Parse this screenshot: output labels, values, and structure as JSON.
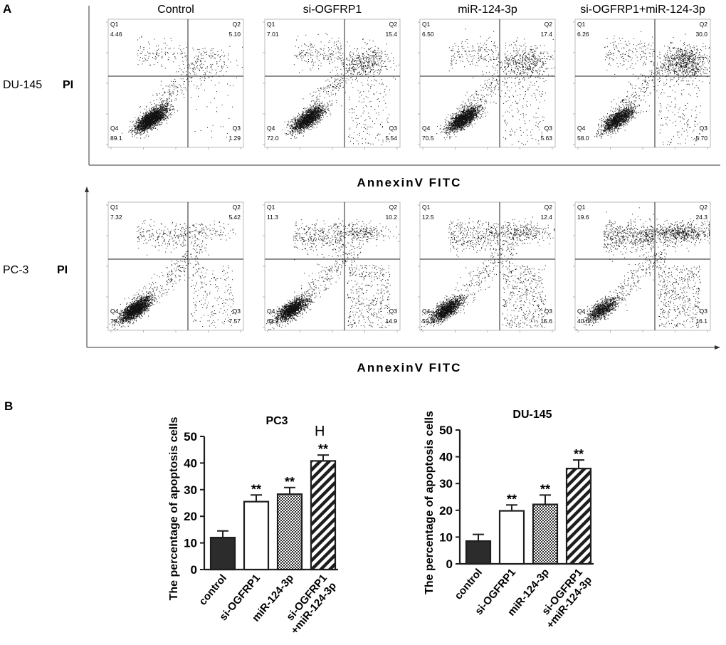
{
  "colors": {
    "ink": "#1e1e1e",
    "bar_fill": "#2c2c2c",
    "panel_border": "#aaaaaa"
  },
  "panel_a": {
    "label": "A",
    "columns": [
      "Control",
      "si-OGFRP1",
      "miR-124-3p",
      "si-OGFRP1+miR-124-3p"
    ],
    "x_axis_label": "AnnexinV FITC",
    "y_axis_label": "PI",
    "rows": [
      {
        "cell_line": "DU-145",
        "plots": [
          {
            "q1": "4.46",
            "q2": "5.10",
            "q3": "1.29",
            "q4": "89.1"
          },
          {
            "q1": "7.01",
            "q2": "15.4",
            "q3": "5.54",
            "q4": "72.0"
          },
          {
            "q1": "6.50",
            "q2": "17.4",
            "q3": "5.63",
            "q4": "70.5"
          },
          {
            "q1": "6.26",
            "q2": "30.0",
            "q3": "5.70",
            "q4": "58.0"
          }
        ]
      },
      {
        "cell_line": "PC-3",
        "plots": [
          {
            "q1": "7.32",
            "q2": "5.42",
            "q3": "7.57",
            "q4": "79.7"
          },
          {
            "q1": "11.3",
            "q2": "10.2",
            "q3": "14.9",
            "q4": "63.7"
          },
          {
            "q1": "12.5",
            "q2": "12.4",
            "q3": "15.6",
            "q4": "59.5"
          },
          {
            "q1": "19.6",
            "q2": "24.3",
            "q3": "16.1",
            "q4": "40.0"
          }
        ]
      }
    ],
    "quadrant_names": [
      "Q1",
      "Q2",
      "Q3",
      "Q4"
    ]
  },
  "panel_b": {
    "label": "B",
    "stray_mark": "H"
  },
  "chart_data": [
    {
      "type": "bar",
      "title": "PC3",
      "xlabel": "",
      "ylabel": "The percentage of apoptosis cells",
      "categories": [
        "control",
        "si-OGFRP1",
        "miR-124-3p",
        "si-OGFRP1 +miR-124-3p"
      ],
      "values": [
        12,
        25.5,
        28.3,
        40.8
      ],
      "errors": [
        2.5,
        2.5,
        2.5,
        2.2
      ],
      "significance": [
        "",
        "**",
        "**",
        "**"
      ],
      "ylim": [
        0,
        50
      ],
      "yticks": [
        0,
        10,
        20,
        30,
        40,
        50
      ],
      "bar_patterns": [
        "solid",
        "open",
        "checker",
        "hatch"
      ]
    },
    {
      "type": "bar",
      "title": "DU-145",
      "xlabel": "",
      "ylabel": "The percentage of apoptosis cells",
      "categories": [
        "control",
        "si-OGFRP1",
        "miR-124-3p",
        "si-OGFRP1 +miR-124-3p"
      ],
      "values": [
        8.5,
        19.8,
        22.2,
        35.6
      ],
      "errors": [
        2.5,
        2.2,
        3.5,
        3.2
      ],
      "significance": [
        "",
        "**",
        "**",
        "**"
      ],
      "ylim": [
        0,
        50
      ],
      "yticks": [
        0,
        10,
        20,
        30,
        40,
        50
      ],
      "bar_patterns": [
        "solid",
        "open",
        "checker",
        "hatch"
      ]
    }
  ]
}
